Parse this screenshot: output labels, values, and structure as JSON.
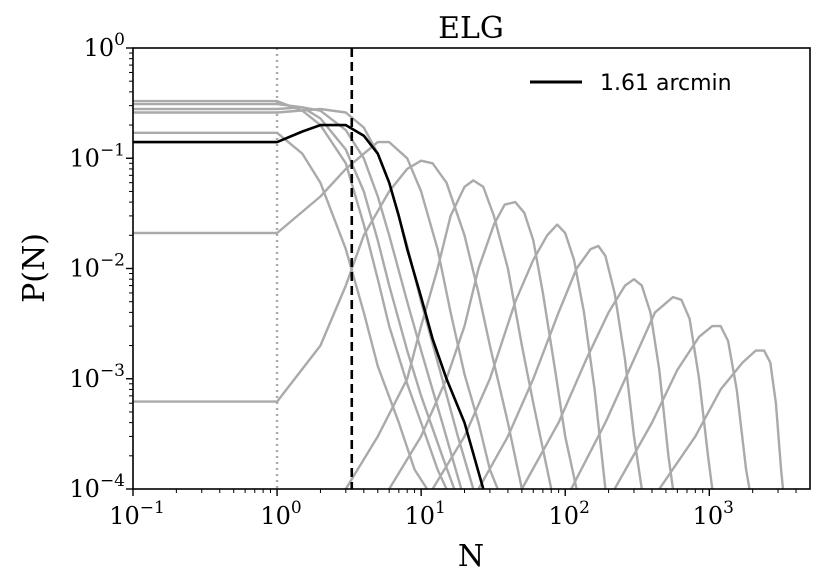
{
  "chart_data": {
    "type": "line",
    "title": "ELG",
    "xlabel": "N",
    "ylabel": "P(N)",
    "xscale": "log",
    "yscale": "log",
    "xlim": [
      0.1,
      5000
    ],
    "ylim": [
      0.0001,
      1
    ],
    "x_ticks": [
      {
        "value": 0.1,
        "base": "10",
        "exp": "−1"
      },
      {
        "value": 1,
        "base": "10",
        "exp": "0"
      },
      {
        "value": 10,
        "base": "10",
        "exp": "1"
      },
      {
        "value": 100,
        "base": "10",
        "exp": "2"
      },
      {
        "value": 1000,
        "base": "10",
        "exp": "3"
      }
    ],
    "y_ticks": [
      {
        "value": 0.0001,
        "base": "10",
        "exp": "−4"
      },
      {
        "value": 0.001,
        "base": "10",
        "exp": "−3"
      },
      {
        "value": 0.01,
        "base": "10",
        "exp": "−2"
      },
      {
        "value": 0.1,
        "base": "10",
        "exp": "−1"
      },
      {
        "value": 1,
        "base": "10",
        "exp": "0"
      }
    ],
    "grid": false,
    "legend_position": "top-right",
    "vlines": [
      {
        "x": 1.0,
        "style": "dotted",
        "color": "#aaaaaa"
      },
      {
        "x": 3.3,
        "style": "dashed",
        "color": "#000000"
      }
    ],
    "series": [
      {
        "name": "1.61 arcmin",
        "color": "#000000",
        "highlight": true,
        "points": [
          [
            0.1,
            0.14
          ],
          [
            1,
            0.14
          ],
          [
            1.5,
            0.175
          ],
          [
            2,
            0.2
          ],
          [
            3,
            0.2
          ],
          [
            4,
            0.16
          ],
          [
            5,
            0.11
          ],
          [
            6,
            0.06
          ],
          [
            7,
            0.03
          ],
          [
            8,
            0.015
          ],
          [
            10,
            0.0055
          ],
          [
            12,
            0.0023
          ],
          [
            15,
            0.001
          ],
          [
            20,
            0.0004
          ],
          [
            27,
            0.0001
          ]
        ]
      },
      {
        "color": "#aaaaaa",
        "points": [
          [
            0.1,
            0.33
          ],
          [
            1,
            0.33
          ],
          [
            1.5,
            0.27
          ],
          [
            2,
            0.2
          ],
          [
            3,
            0.09
          ],
          [
            4,
            0.025
          ],
          [
            5,
            0.008
          ],
          [
            6,
            0.003
          ],
          [
            8,
            0.0009
          ],
          [
            10,
            0.0004
          ],
          [
            13,
            0.00015
          ],
          [
            15,
            0.0001
          ]
        ]
      },
      {
        "color": "#aaaaaa",
        "points": [
          [
            0.1,
            0.31
          ],
          [
            1,
            0.31
          ],
          [
            1.5,
            0.29
          ],
          [
            2,
            0.23
          ],
          [
            3,
            0.12
          ],
          [
            4,
            0.05
          ],
          [
            5,
            0.018
          ],
          [
            6,
            0.007
          ],
          [
            8,
            0.0018
          ],
          [
            10,
            0.0007
          ],
          [
            14,
            0.0002
          ],
          [
            17,
            0.0001
          ]
        ]
      },
      {
        "color": "#aaaaaa",
        "points": [
          [
            0.1,
            0.28
          ],
          [
            1,
            0.28
          ],
          [
            1.5,
            0.29
          ],
          [
            2,
            0.27
          ],
          [
            3,
            0.18
          ],
          [
            4,
            0.1
          ],
          [
            5,
            0.045
          ],
          [
            6,
            0.02
          ],
          [
            8,
            0.005
          ],
          [
            10,
            0.0018
          ],
          [
            14,
            0.0004
          ],
          [
            19,
            0.0001
          ]
        ]
      },
      {
        "color": "#aaaaaa",
        "points": [
          [
            0.1,
            0.26
          ],
          [
            1,
            0.26
          ],
          [
            2,
            0.28
          ],
          [
            3,
            0.26
          ],
          [
            4,
            0.19
          ],
          [
            5,
            0.11
          ],
          [
            6,
            0.06
          ],
          [
            8,
            0.016
          ],
          [
            10,
            0.005
          ],
          [
            14,
            0.001
          ],
          [
            18,
            0.0003
          ],
          [
            23,
            0.0001
          ]
        ]
      },
      {
        "color": "#aaaaaa",
        "points": [
          [
            0.1,
            0.17
          ],
          [
            1,
            0.17
          ],
          [
            1.5,
            0.11
          ],
          [
            2,
            0.06
          ],
          [
            3,
            0.015
          ],
          [
            4,
            0.004
          ],
          [
            5,
            0.0013
          ],
          [
            7,
            0.0004
          ],
          [
            9,
            0.00015
          ],
          [
            11,
            0.0001
          ]
        ]
      },
      {
        "color": "#aaaaaa",
        "points": [
          [
            0.1,
            0.021
          ],
          [
            1,
            0.021
          ],
          [
            2,
            0.045
          ],
          [
            3,
            0.08
          ],
          [
            4,
            0.11
          ],
          [
            5,
            0.14
          ],
          [
            6,
            0.14
          ],
          [
            8,
            0.1
          ],
          [
            10,
            0.05
          ],
          [
            13,
            0.015
          ],
          [
            16,
            0.004
          ],
          [
            20,
            0.0011
          ],
          [
            25,
            0.0004
          ],
          [
            30,
            0.00015
          ],
          [
            34,
            0.0001
          ]
        ]
      },
      {
        "color": "#aaaaaa",
        "points": [
          [
            0.1,
            0.00062
          ],
          [
            1,
            0.00062
          ],
          [
            2,
            0.002
          ],
          [
            3,
            0.007
          ],
          [
            4,
            0.02
          ],
          [
            6,
            0.05
          ],
          [
            8,
            0.08
          ],
          [
            10,
            0.095
          ],
          [
            12,
            0.09
          ],
          [
            15,
            0.06
          ],
          [
            20,
            0.02
          ],
          [
            25,
            0.006
          ],
          [
            30,
            0.002
          ],
          [
            40,
            0.0004
          ],
          [
            50,
            0.0001
          ]
        ]
      },
      {
        "color": "#aaaaaa",
        "points": [
          [
            3,
            0.0001
          ],
          [
            5,
            0.0003
          ],
          [
            8,
            0.001
          ],
          [
            10,
            0.003
          ],
          [
            13,
            0.01
          ],
          [
            16,
            0.03
          ],
          [
            20,
            0.055
          ],
          [
            23,
            0.063
          ],
          [
            27,
            0.055
          ],
          [
            32,
            0.03
          ],
          [
            40,
            0.01
          ],
          [
            50,
            0.002
          ],
          [
            60,
            0.0006
          ],
          [
            80,
            0.0001
          ]
        ]
      },
      {
        "color": "#aaaaaa",
        "points": [
          [
            6,
            0.0001
          ],
          [
            10,
            0.0003
          ],
          [
            15,
            0.001
          ],
          [
            20,
            0.003
          ],
          [
            25,
            0.01
          ],
          [
            32,
            0.025
          ],
          [
            38,
            0.038
          ],
          [
            45,
            0.04
          ],
          [
            52,
            0.032
          ],
          [
            60,
            0.018
          ],
          [
            70,
            0.006
          ],
          [
            85,
            0.0012
          ],
          [
            100,
            0.0003
          ],
          [
            120,
            0.0001
          ]
        ]
      },
      {
        "color": "#aaaaaa",
        "points": [
          [
            12,
            0.0001
          ],
          [
            20,
            0.0003
          ],
          [
            30,
            0.001
          ],
          [
            45,
            0.005
          ],
          [
            60,
            0.012
          ],
          [
            75,
            0.02
          ],
          [
            88,
            0.025
          ],
          [
            100,
            0.021
          ],
          [
            115,
            0.012
          ],
          [
            135,
            0.004
          ],
          [
            160,
            0.0008
          ],
          [
            190,
            0.0001
          ]
        ]
      },
      {
        "color": "#aaaaaa",
        "points": [
          [
            25,
            0.0001
          ],
          [
            40,
            0.0003
          ],
          [
            60,
            0.001
          ],
          [
            90,
            0.004
          ],
          [
            120,
            0.01
          ],
          [
            150,
            0.015
          ],
          [
            170,
            0.016
          ],
          [
            190,
            0.013
          ],
          [
            220,
            0.006
          ],
          [
            260,
            0.0015
          ],
          [
            300,
            0.0003
          ],
          [
            340,
            0.0001
          ]
        ]
      },
      {
        "color": "#aaaaaa",
        "points": [
          [
            50,
            0.0001
          ],
          [
            90,
            0.0004
          ],
          [
            140,
            0.0015
          ],
          [
            200,
            0.004
          ],
          [
            260,
            0.007
          ],
          [
            300,
            0.008
          ],
          [
            340,
            0.007
          ],
          [
            390,
            0.004
          ],
          [
            450,
            0.0012
          ],
          [
            520,
            0.0002
          ],
          [
            560,
            0.0001
          ]
        ]
      },
      {
        "color": "#aaaaaa",
        "points": [
          [
            110,
            0.0001
          ],
          [
            190,
            0.0004
          ],
          [
            300,
            0.0015
          ],
          [
            420,
            0.004
          ],
          [
            560,
            0.0055
          ],
          [
            640,
            0.0052
          ],
          [
            730,
            0.0035
          ],
          [
            850,
            0.001
          ],
          [
            980,
            0.0002
          ],
          [
            1050,
            0.0001
          ]
        ]
      },
      {
        "color": "#aaaaaa",
        "points": [
          [
            220,
            0.0001
          ],
          [
            400,
            0.0004
          ],
          [
            600,
            0.0012
          ],
          [
            850,
            0.0024
          ],
          [
            1050,
            0.003
          ],
          [
            1200,
            0.003
          ],
          [
            1350,
            0.0022
          ],
          [
            1550,
            0.0008
          ],
          [
            1800,
            0.00015
          ],
          [
            1900,
            0.0001
          ]
        ]
      },
      {
        "color": "#aaaaaa",
        "points": [
          [
            450,
            0.0001
          ],
          [
            800,
            0.0003
          ],
          [
            1200,
            0.0008
          ],
          [
            1700,
            0.0014
          ],
          [
            2100,
            0.0018
          ],
          [
            2400,
            0.0018
          ],
          [
            2650,
            0.0014
          ],
          [
            2900,
            0.0006
          ],
          [
            3150,
            0.00015
          ],
          [
            3250,
            0.0001
          ]
        ]
      }
    ]
  }
}
